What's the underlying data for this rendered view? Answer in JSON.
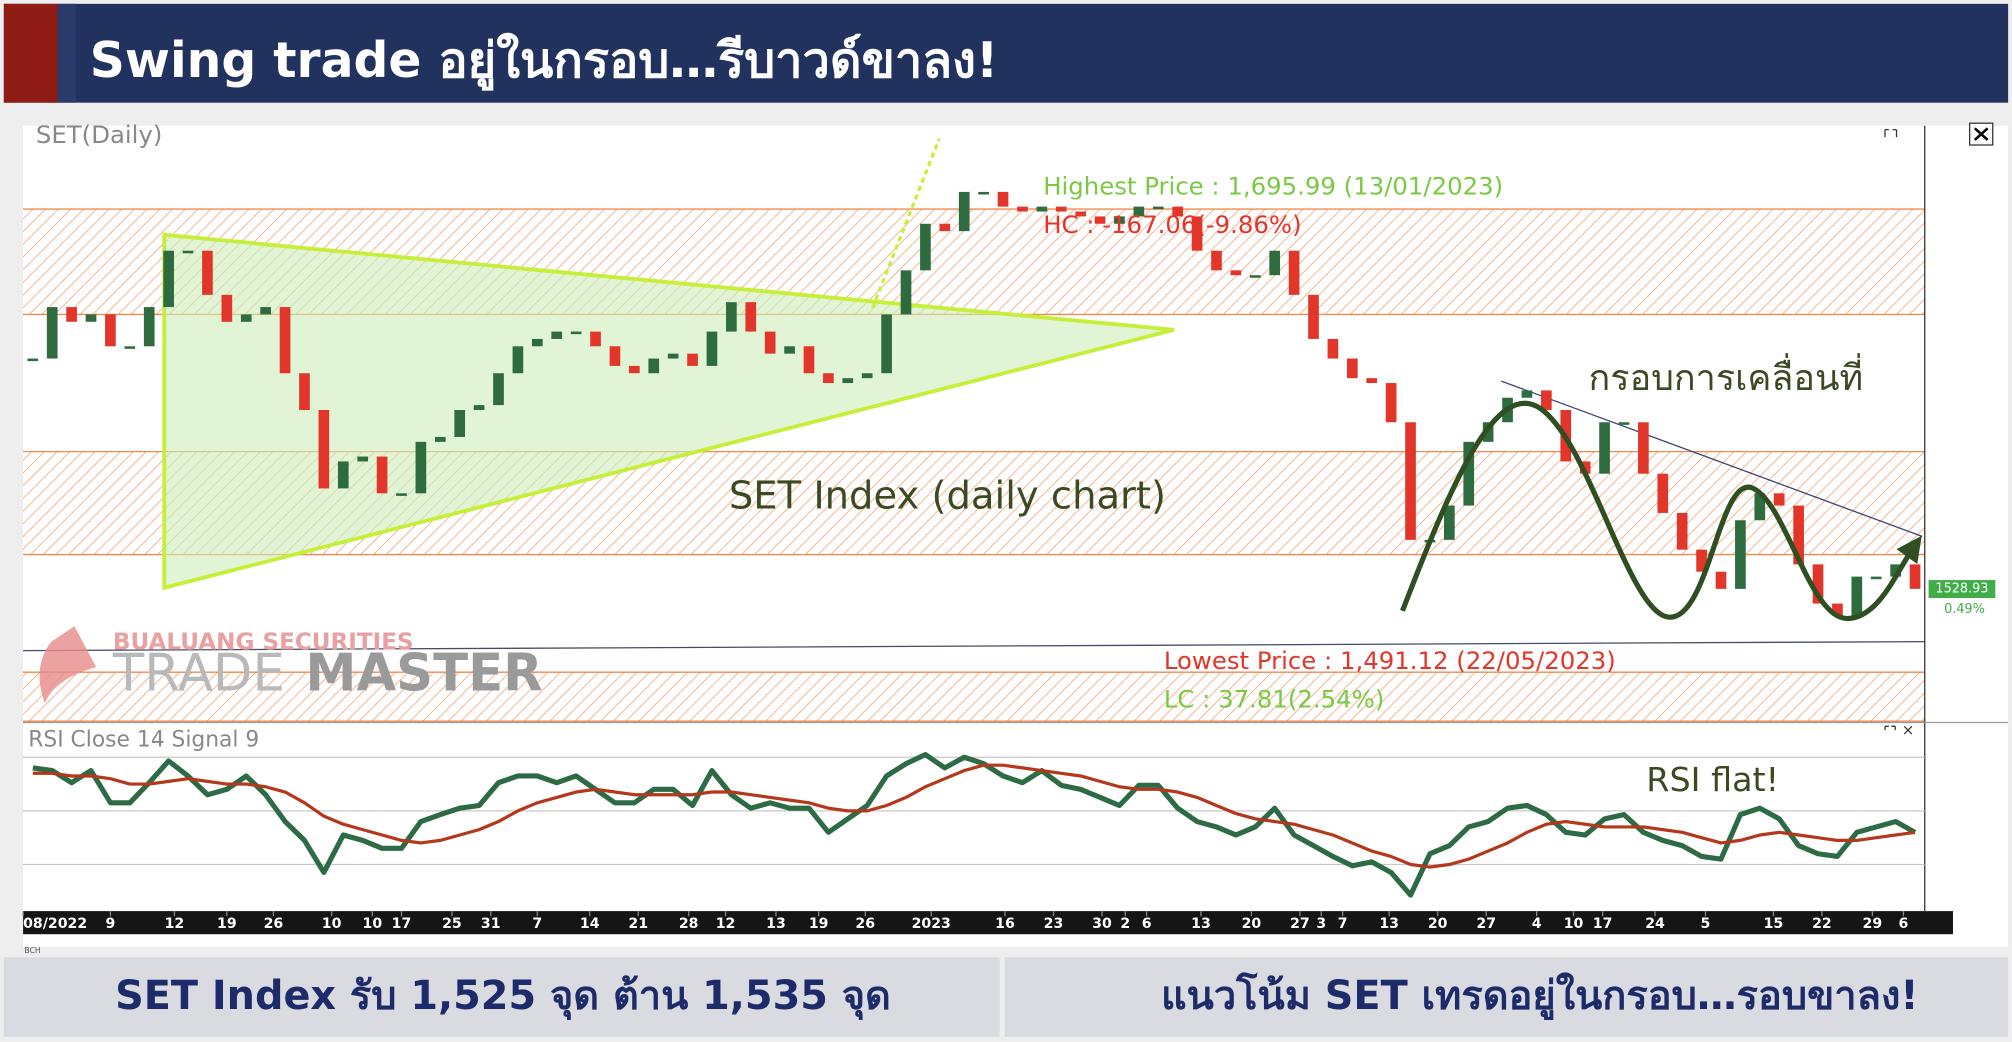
{
  "header": {
    "title": "Swing trade อยู่ในกรอบ…รีบาวด์ขาลง!"
  },
  "watermark": {
    "company": "BUALUANG SECURITIES",
    "brand_light": "TRADE",
    "brand_bold": "MASTER"
  },
  "source_note": "BCH",
  "footer": {
    "left": "SET Index รับ 1,525 จุด ต้าน 1,535 จุด",
    "right": "แนวโน้ม SET เทรดอยู่ในกรอบ…รอบขาลง!"
  },
  "chart_data": [
    {
      "type": "candlestick",
      "title": "SET(Daily)",
      "color_up": "#2e6b3e",
      "color_down": "#e2362a",
      "zone_color": "#f08a4b",
      "close": [
        1623,
        1644,
        1638,
        1641,
        1628,
        1628,
        1644,
        1667,
        1667,
        1649,
        1638,
        1641,
        1644,
        1617,
        1602,
        1570,
        1581,
        1583,
        1568,
        1568,
        1589,
        1591,
        1602,
        1604,
        1617,
        1628,
        1631,
        1634,
        1634,
        1628,
        1620,
        1617,
        1623,
        1625,
        1620,
        1634,
        1646,
        1634,
        1625,
        1628,
        1617,
        1613,
        1615,
        1617,
        1641,
        1659,
        1678,
        1675,
        1691,
        1691,
        1685,
        1683,
        1685,
        1683,
        1681,
        1678,
        1681,
        1685,
        1685,
        1681,
        1667,
        1659,
        1657,
        1657,
        1667,
        1649,
        1631,
        1623,
        1615,
        1613,
        1597,
        1549,
        1549,
        1563,
        1589,
        1597,
        1607,
        1610,
        1602,
        1581,
        1576,
        1597,
        1597,
        1576,
        1560,
        1545,
        1536,
        1529,
        1557,
        1568,
        1563,
        1539,
        1523,
        1518,
        1534,
        1534,
        1539,
        1529
      ],
      "ylim": [
        1475,
        1718
      ],
      "xlim": [
        0,
        98
      ],
      "xticks": [
        {
          "value": 0,
          "label": "08/2022"
        },
        {
          "value": 4.5,
          "label": "9"
        },
        {
          "value": 7.8,
          "label": "12"
        },
        {
          "value": 10.5,
          "label": "19"
        },
        {
          "value": 12.9,
          "label": "26"
        },
        {
          "value": 15.9,
          "label": "10"
        },
        {
          "value": 18.0,
          "label": "10"
        },
        {
          "value": 19.5,
          "label": "17"
        },
        {
          "value": 22.1,
          "label": "25"
        },
        {
          "value": 24.1,
          "label": "31"
        },
        {
          "value": 26.5,
          "label": "7"
        },
        {
          "value": 29.2,
          "label": "14"
        },
        {
          "value": 31.7,
          "label": "21"
        },
        {
          "value": 34.3,
          "label": "28"
        },
        {
          "value": 36.2,
          "label": "12"
        },
        {
          "value": 38.8,
          "label": "13"
        },
        {
          "value": 41.0,
          "label": "19"
        },
        {
          "value": 43.4,
          "label": "26"
        },
        {
          "value": 46.8,
          "label": "2023"
        },
        {
          "value": 50.6,
          "label": "16"
        },
        {
          "value": 53.1,
          "label": "23"
        },
        {
          "value": 55.6,
          "label": "30"
        },
        {
          "value": 56.8,
          "label": "2"
        },
        {
          "value": 57.9,
          "label": "6"
        },
        {
          "value": 60.7,
          "label": "13"
        },
        {
          "value": 63.3,
          "label": "20"
        },
        {
          "value": 65.8,
          "label": "27"
        },
        {
          "value": 66.9,
          "label": "3"
        },
        {
          "value": 68.0,
          "label": "7"
        },
        {
          "value": 70.4,
          "label": "13"
        },
        {
          "value": 72.9,
          "label": "20"
        },
        {
          "value": 75.4,
          "label": "27"
        },
        {
          "value": 78.0,
          "label": "4"
        },
        {
          "value": 79.9,
          "label": "10"
        },
        {
          "value": 81.4,
          "label": "17"
        },
        {
          "value": 84.1,
          "label": "24"
        },
        {
          "value": 86.7,
          "label": "5"
        },
        {
          "value": 90.2,
          "label": "15"
        },
        {
          "value": 92.7,
          "label": "22"
        },
        {
          "value": 95.3,
          "label": "29"
        },
        {
          "value": 96.9,
          "label": "6"
        }
      ],
      "zones": [
        [
          1641,
          1684
        ],
        [
          1543,
          1585
        ],
        [
          1475,
          1495
        ]
      ],
      "last_price": 1528.93,
      "last_change": {
        "value": 0.49,
        "label": "0.49%"
      },
      "annotations": {
        "highest": "Highest Price : 1,695.99 (13/01/2023)",
        "hc": "HC : -167.06(-9.86%)",
        "lowest": "Lowest Price : 1,491.12 (22/05/2023)",
        "lc": "LC : 37.81(2.54%)",
        "chart_label": "SET Index (daily chart)",
        "range_label": "กรอบการเคลื่อนที่"
      }
    },
    {
      "type": "line",
      "title": "RSI Close 14 Signal 9",
      "series": [
        {
          "color": "#2d6b45",
          "values": [
            66,
            65,
            60.5,
            65,
            53,
            53,
            60.5,
            68.6,
            63,
            56,
            58,
            63,
            56,
            46,
            39,
            27,
            41,
            39,
            36,
            36,
            46,
            48.6,
            51,
            52,
            60.5,
            63,
            63,
            60.5,
            63,
            58,
            53,
            53,
            58,
            58,
            52,
            65,
            56,
            51,
            53,
            51,
            51,
            42,
            47,
            52,
            63,
            67.6,
            71,
            66,
            70,
            67.6,
            63,
            60.5,
            65,
            59.5,
            58,
            55,
            52,
            59.5,
            59.5,
            51,
            46,
            44,
            41,
            44,
            51,
            41,
            37,
            33,
            29.5,
            31,
            27,
            18.6,
            34,
            37,
            44,
            46,
            51,
            52,
            48.6,
            42,
            41,
            47,
            48.6,
            42,
            39,
            37,
            33,
            32,
            48.6,
            51,
            47,
            37,
            34,
            33,
            42,
            44,
            46,
            42
          ]
        },
        {
          "color": "#b3381c",
          "values": [
            64,
            64,
            63,
            63,
            62,
            60,
            60,
            61,
            62,
            61,
            60,
            60,
            59,
            57,
            53,
            48,
            45,
            43,
            41,
            39,
            38,
            39,
            41,
            43,
            46,
            50,
            53,
            55,
            57,
            58,
            57,
            56,
            56,
            56,
            56,
            57,
            57,
            56,
            55,
            54,
            53,
            51,
            50,
            50,
            52,
            55,
            59,
            62,
            65,
            67,
            67,
            66,
            65,
            64,
            63,
            61,
            59,
            58,
            58,
            57,
            55,
            52,
            49,
            47,
            46,
            45,
            43,
            41,
            38,
            35,
            33,
            30,
            29,
            30,
            32,
            35,
            38,
            42,
            45,
            46,
            45,
            44,
            44,
            44,
            43,
            42,
            40,
            38,
            39,
            41,
            42,
            41,
            40,
            39,
            39,
            40,
            41,
            42
          ]
        }
      ],
      "ylim": [
        15,
        82
      ],
      "xlim": [
        0,
        98
      ],
      "yticks": [
        30,
        50,
        70
      ],
      "annotation": "RSI flat!"
    }
  ]
}
